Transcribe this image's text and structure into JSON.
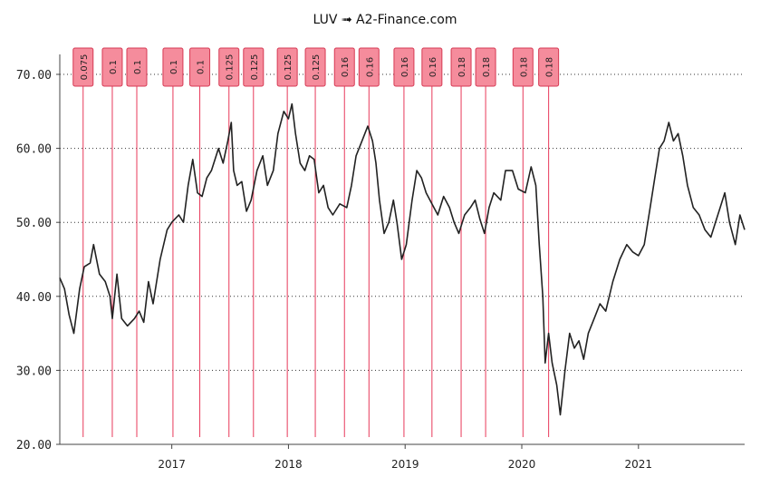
{
  "chart_data": {
    "type": "line",
    "title": "LUV ➟ A2-Finance.com",
    "ylim": [
      20,
      70
    ],
    "y_ticks": [
      "20.00",
      "30.00",
      "40.00",
      "50.00",
      "60.00",
      "70.00"
    ],
    "y_tick_values": [
      20,
      30,
      40,
      50,
      60,
      70
    ],
    "x_range": [
      2016.04,
      2021.91
    ],
    "x_ticks": [
      "2017",
      "2018",
      "2019",
      "2020",
      "2021"
    ],
    "x_tick_values": [
      2017.0,
      2018.0,
      2019.0,
      2020.0,
      2021.0
    ],
    "grid": "horizontal dotted",
    "series": [
      {
        "name": "LUV price",
        "color": "#222222",
        "points": [
          [
            2016.04,
            42.5
          ],
          [
            2016.08,
            41.0
          ],
          [
            2016.12,
            37.5
          ],
          [
            2016.16,
            35.0
          ],
          [
            2016.21,
            41.0
          ],
          [
            2016.25,
            44.0
          ],
          [
            2016.3,
            44.5
          ],
          [
            2016.33,
            47.0
          ],
          [
            2016.38,
            43.0
          ],
          [
            2016.43,
            42.0
          ],
          [
            2016.47,
            40.0
          ],
          [
            2016.49,
            37.0
          ],
          [
            2016.53,
            43.0
          ],
          [
            2016.57,
            37.0
          ],
          [
            2016.62,
            36.0
          ],
          [
            2016.68,
            37.0
          ],
          [
            2016.72,
            38.0
          ],
          [
            2016.76,
            36.5
          ],
          [
            2016.8,
            42.0
          ],
          [
            2016.84,
            39.0
          ],
          [
            2016.9,
            45.0
          ],
          [
            2016.96,
            49.0
          ],
          [
            2017.0,
            50.0
          ],
          [
            2017.06,
            51.0
          ],
          [
            2017.1,
            50.0
          ],
          [
            2017.14,
            55.0
          ],
          [
            2017.18,
            58.5
          ],
          [
            2017.22,
            54.0
          ],
          [
            2017.26,
            53.5
          ],
          [
            2017.3,
            56.0
          ],
          [
            2017.34,
            57.0
          ],
          [
            2017.4,
            60.0
          ],
          [
            2017.44,
            58.0
          ],
          [
            2017.48,
            61.0
          ],
          [
            2017.51,
            63.5
          ],
          [
            2017.53,
            57.0
          ],
          [
            2017.56,
            55.0
          ],
          [
            2017.6,
            55.5
          ],
          [
            2017.64,
            51.5
          ],
          [
            2017.68,
            53.0
          ],
          [
            2017.73,
            57.0
          ],
          [
            2017.78,
            59.0
          ],
          [
            2017.82,
            55.0
          ],
          [
            2017.87,
            57.0
          ],
          [
            2017.91,
            62.0
          ],
          [
            2017.96,
            65.0
          ],
          [
            2018.0,
            64.0
          ],
          [
            2018.03,
            66.0
          ],
          [
            2018.06,
            62.0
          ],
          [
            2018.1,
            58.0
          ],
          [
            2018.14,
            57.0
          ],
          [
            2018.18,
            59.0
          ],
          [
            2018.22,
            58.5
          ],
          [
            2018.26,
            54.0
          ],
          [
            2018.3,
            55.0
          ],
          [
            2018.34,
            52.0
          ],
          [
            2018.38,
            51.0
          ],
          [
            2018.44,
            52.5
          ],
          [
            2018.5,
            52.0
          ],
          [
            2018.54,
            55.0
          ],
          [
            2018.58,
            59.0
          ],
          [
            2018.63,
            61.0
          ],
          [
            2018.68,
            63.0
          ],
          [
            2018.72,
            61.0
          ],
          [
            2018.75,
            58.0
          ],
          [
            2018.78,
            53.0
          ],
          [
            2018.82,
            48.5
          ],
          [
            2018.86,
            50.0
          ],
          [
            2018.9,
            53.0
          ],
          [
            2018.93,
            50.0
          ],
          [
            2018.97,
            45.0
          ],
          [
            2019.01,
            47.0
          ],
          [
            2019.06,
            53.0
          ],
          [
            2019.1,
            57.0
          ],
          [
            2019.14,
            56.0
          ],
          [
            2019.18,
            54.0
          ],
          [
            2019.23,
            52.5
          ],
          [
            2019.28,
            51.0
          ],
          [
            2019.33,
            53.5
          ],
          [
            2019.38,
            52.0
          ],
          [
            2019.42,
            50.0
          ],
          [
            2019.46,
            48.5
          ],
          [
            2019.51,
            51.0
          ],
          [
            2019.56,
            52.0
          ],
          [
            2019.6,
            53.0
          ],
          [
            2019.64,
            50.5
          ],
          [
            2019.68,
            48.5
          ],
          [
            2019.72,
            52.0
          ],
          [
            2019.76,
            54.0
          ],
          [
            2019.82,
            53.0
          ],
          [
            2019.86,
            57.0
          ],
          [
            2019.92,
            57.0
          ],
          [
            2019.97,
            54.5
          ],
          [
            2020.03,
            54.0
          ],
          [
            2020.08,
            57.5
          ],
          [
            2020.12,
            55.0
          ],
          [
            2020.15,
            47.0
          ],
          [
            2020.18,
            40.0
          ],
          [
            2020.2,
            31.0
          ],
          [
            2020.23,
            35.0
          ],
          [
            2020.26,
            31.0
          ],
          [
            2020.3,
            28.0
          ],
          [
            2020.33,
            24.0
          ],
          [
            2020.37,
            30.0
          ],
          [
            2020.41,
            35.0
          ],
          [
            2020.45,
            33.0
          ],
          [
            2020.49,
            34.0
          ],
          [
            2020.53,
            31.5
          ],
          [
            2020.57,
            35.0
          ],
          [
            2020.62,
            37.0
          ],
          [
            2020.67,
            39.0
          ],
          [
            2020.72,
            38.0
          ],
          [
            2020.78,
            42.0
          ],
          [
            2020.84,
            45.0
          ],
          [
            2020.9,
            47.0
          ],
          [
            2020.95,
            46.0
          ],
          [
            2021.0,
            45.5
          ],
          [
            2021.05,
            47.0
          ],
          [
            2021.1,
            52.0
          ],
          [
            2021.14,
            56.0
          ],
          [
            2021.18,
            60.0
          ],
          [
            2021.22,
            61.0
          ],
          [
            2021.26,
            63.5
          ],
          [
            2021.3,
            61.0
          ],
          [
            2021.34,
            62.0
          ],
          [
            2021.38,
            59.0
          ],
          [
            2021.42,
            55.0
          ],
          [
            2021.47,
            52.0
          ],
          [
            2021.52,
            51.0
          ],
          [
            2021.57,
            49.0
          ],
          [
            2021.62,
            48.0
          ],
          [
            2021.66,
            50.0
          ],
          [
            2021.7,
            52.0
          ],
          [
            2021.74,
            54.0
          ],
          [
            2021.78,
            50.0
          ],
          [
            2021.83,
            47.0
          ],
          [
            2021.87,
            51.0
          ],
          [
            2021.91,
            49.0
          ]
        ]
      }
    ],
    "dividends": [
      {
        "x": 2016.24,
        "label": "0.075"
      },
      {
        "x": 2016.49,
        "label": "0.1"
      },
      {
        "x": 2016.7,
        "label": "0.1"
      },
      {
        "x": 2017.01,
        "label": "0.1"
      },
      {
        "x": 2017.24,
        "label": "0.1"
      },
      {
        "x": 2017.49,
        "label": "0.125"
      },
      {
        "x": 2017.7,
        "label": "0.125"
      },
      {
        "x": 2017.99,
        "label": "0.125"
      },
      {
        "x": 2018.23,
        "label": "0.125"
      },
      {
        "x": 2018.48,
        "label": "0.16"
      },
      {
        "x": 2018.69,
        "label": "0.16"
      },
      {
        "x": 2018.99,
        "label": "0.16"
      },
      {
        "x": 2019.23,
        "label": "0.16"
      },
      {
        "x": 2019.48,
        "label": "0.18"
      },
      {
        "x": 2019.69,
        "label": "0.18"
      },
      {
        "x": 2020.01,
        "label": "0.18"
      },
      {
        "x": 2020.23,
        "label": "0.18"
      }
    ],
    "colors": {
      "line": "#222222",
      "dividend_line": "#e8395a",
      "dividend_box_fill": "#f58c9c",
      "dividend_box_stroke": "#d63a54",
      "grid": "#333333",
      "axis": "#444444"
    }
  }
}
